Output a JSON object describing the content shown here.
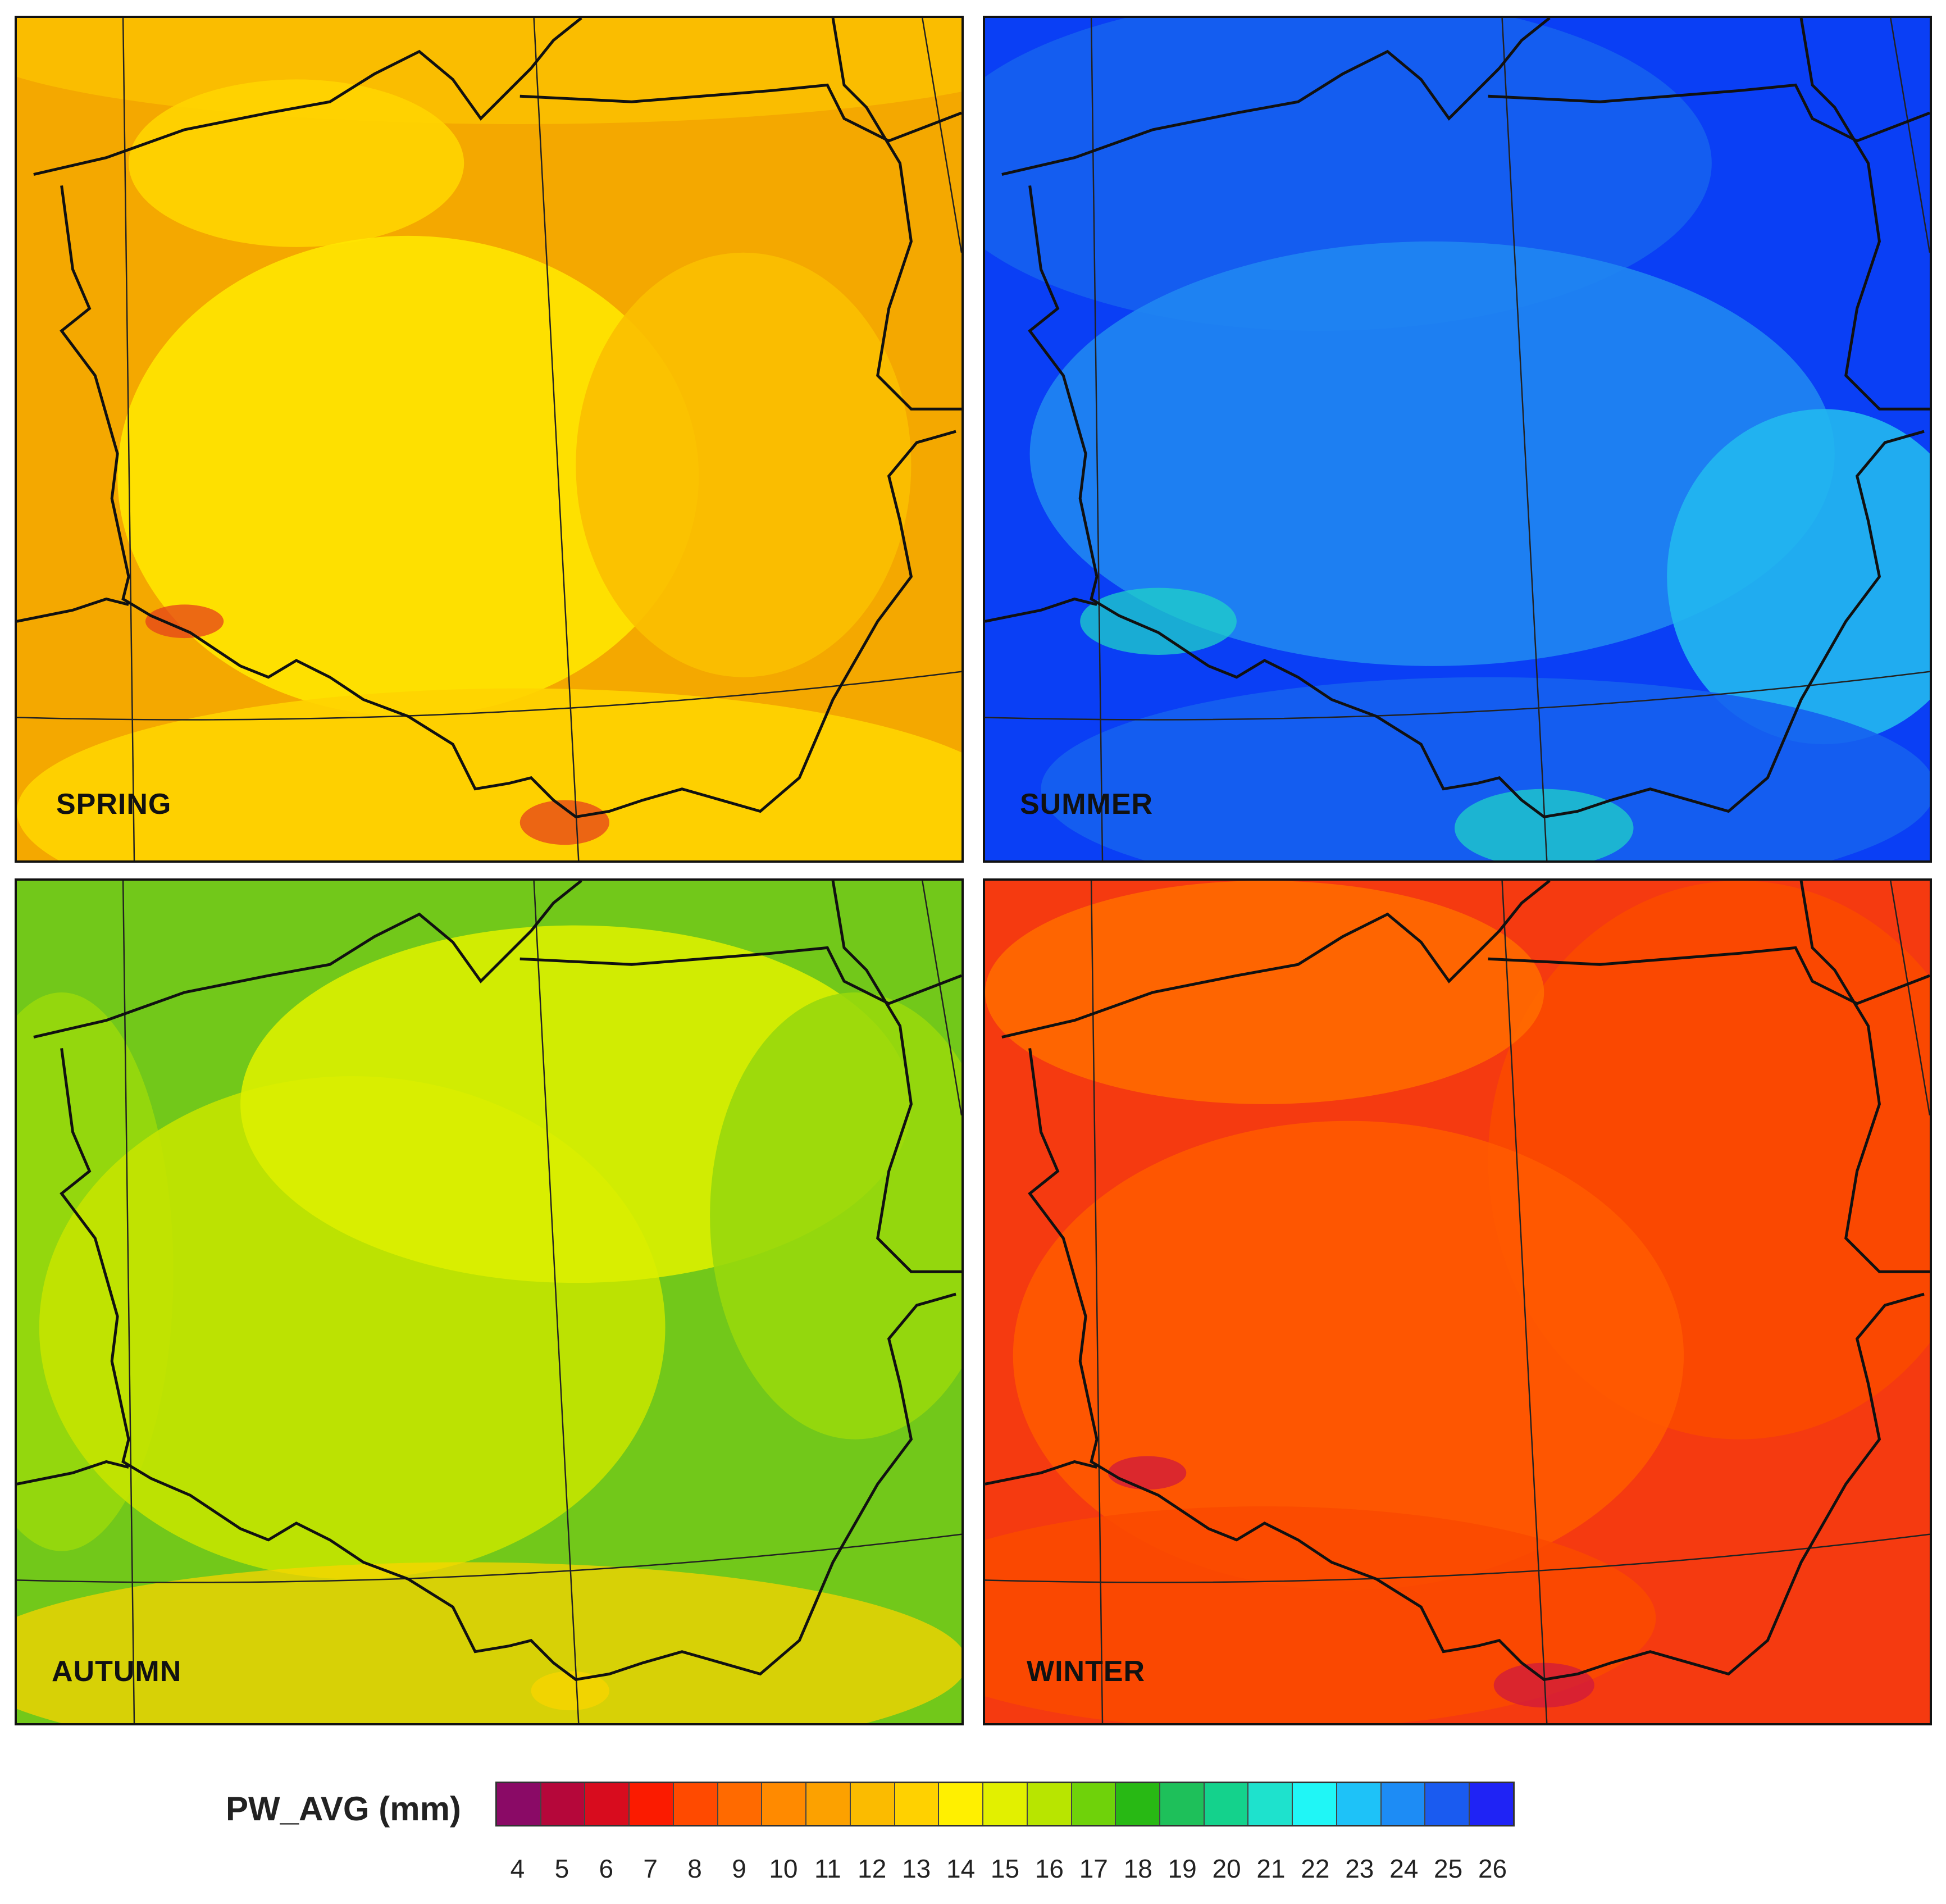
{
  "panels": [
    {
      "label": "SPRING",
      "colors": [
        "#f4a800",
        "#fbbf00",
        "#ffd400",
        "#ffe600",
        "#e5421a"
      ]
    },
    {
      "label": "SUMMER",
      "colors": [
        "#0a3ff5",
        "#1560f0",
        "#1f86f2",
        "#22b8f0",
        "#1fd2c8"
      ]
    },
    {
      "label": "AUTUMN",
      "colors": [
        "#72c81a",
        "#98d80c",
        "#c4e400",
        "#dcf000",
        "#f9d400"
      ]
    },
    {
      "label": "WINTER",
      "colors": [
        "#f53a10",
        "#fb4a00",
        "#ff5a00",
        "#ff6a00",
        "#cf1a3c"
      ]
    }
  ],
  "legend": {
    "title": "PW_AVG (mm)",
    "ticks": [
      "4",
      "5",
      "6",
      "7",
      "8",
      "9",
      "10",
      "11",
      "12",
      "13",
      "14",
      "15",
      "16",
      "17",
      "18",
      "19",
      "20",
      "21",
      "22",
      "23",
      "24",
      "25",
      "26"
    ],
    "colors": [
      "#8a0a66",
      "#b5073a",
      "#d80c1e",
      "#fb1b00",
      "#ff4a00",
      "#ff6a00",
      "#ff8a00",
      "#fca100",
      "#fbbb00",
      "#ffd100",
      "#fff000",
      "#e2f000",
      "#b8e500",
      "#6fd20a",
      "#28b914",
      "#1ec05a",
      "#14d28c",
      "#1ee2cd",
      "#20f6f6",
      "#1ec2f8",
      "#1d8cf5",
      "#1a5bf0",
      "#1f23f5"
    ]
  }
}
